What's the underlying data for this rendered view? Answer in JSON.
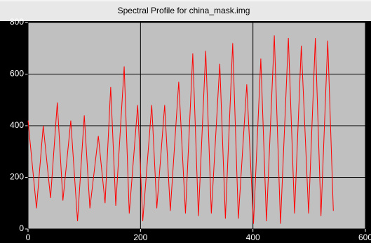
{
  "chart_data": {
    "type": "line",
    "title": "Spectral Profile for china_mask.img",
    "x": [
      0,
      15,
      27,
      40,
      52,
      62,
      76,
      88,
      100,
      110,
      125,
      137,
      147,
      156,
      171,
      180,
      195,
      204,
      220,
      229,
      243,
      253,
      268,
      280,
      293,
      303,
      316,
      326,
      341,
      351,
      364,
      374,
      389,
      401,
      414,
      424,
      438,
      449,
      463,
      474,
      486,
      499,
      511,
      521,
      533,
      543
    ],
    "series": [
      {
        "name": "china_mask.img",
        "color": "#ff0000",
        "values": [
          420,
          80,
          400,
          120,
          490,
          110,
          420,
          30,
          440,
          80,
          360,
          100,
          550,
          90,
          630,
          60,
          480,
          30,
          480,
          80,
          480,
          70,
          570,
          60,
          680,
          50,
          690,
          60,
          640,
          40,
          720,
          40,
          560,
          20,
          660,
          30,
          750,
          20,
          740,
          60,
          710,
          60,
          740,
          50,
          730,
          70
        ]
      }
    ],
    "xlim": [
      0,
      600
    ],
    "ylim": [
      0,
      800
    ],
    "xticks": [
      0,
      200,
      400,
      600
    ],
    "yticks": [
      0,
      200,
      400,
      600,
      800
    ],
    "grid": true
  }
}
